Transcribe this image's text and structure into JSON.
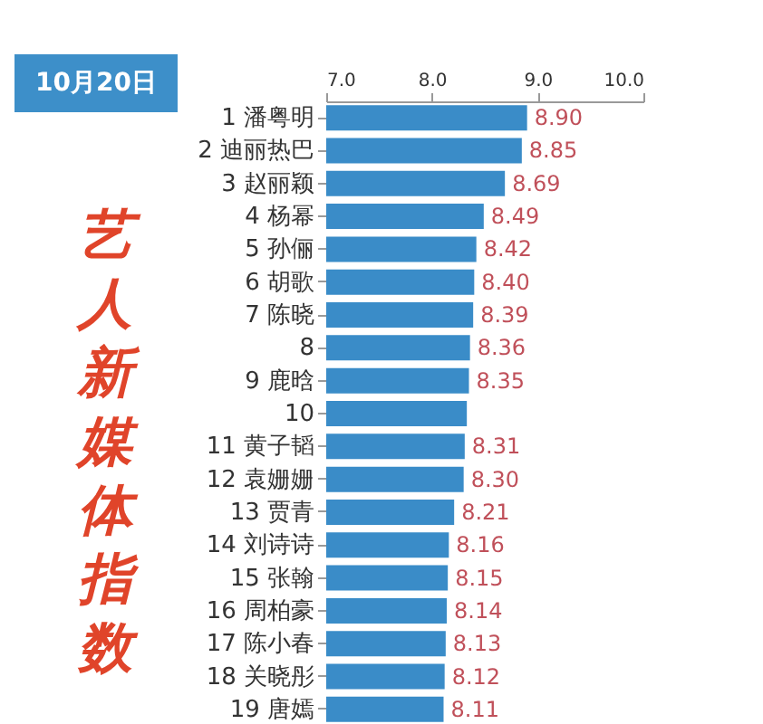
{
  "chart_data": {
    "type": "bar",
    "orientation": "horizontal",
    "title": "艺人新媒体指数",
    "subtitle": "10月20日",
    "categories": [
      "1 潘粤明",
      "2 迪丽热巴",
      "3 赵丽颖",
      "4 杨幂",
      "5 孙俪",
      "6 胡歌",
      "7 陈晓",
      "8",
      "9 鹿晗",
      "10",
      "11 黄子韬",
      "12 袁姗姗",
      "13 贾青",
      "14 刘诗诗",
      "15 张翰",
      "16 周柏豪",
      "17 陈小春",
      "18 关晓彤",
      "19 唐嫣"
    ],
    "values": [
      8.9,
      8.85,
      8.69,
      8.49,
      8.42,
      8.4,
      8.39,
      8.36,
      8.35,
      8.33,
      8.31,
      8.3,
      8.21,
      8.16,
      8.15,
      8.14,
      8.13,
      8.12,
      8.11
    ],
    "value_labels": [
      "8.90",
      "8.85",
      "8.69",
      "8.49",
      "8.42",
      "8.40",
      "8.39",
      "8.36",
      "8.35",
      null,
      "8.31",
      "8.30",
      "8.21",
      "8.16",
      "8.15",
      "8.14",
      "8.13",
      "8.12",
      "8.11"
    ],
    "color": "#3a8cc8",
    "xlim": [
      7,
      10
    ],
    "xticks": [
      {
        "value": 7,
        "label": "7.0"
      },
      {
        "value": 8,
        "label": "8.0"
      },
      {
        "value": 9,
        "label": "9.0"
      },
      {
        "value": 10,
        "label": "10.0"
      }
    ],
    "grid": false
  }
}
